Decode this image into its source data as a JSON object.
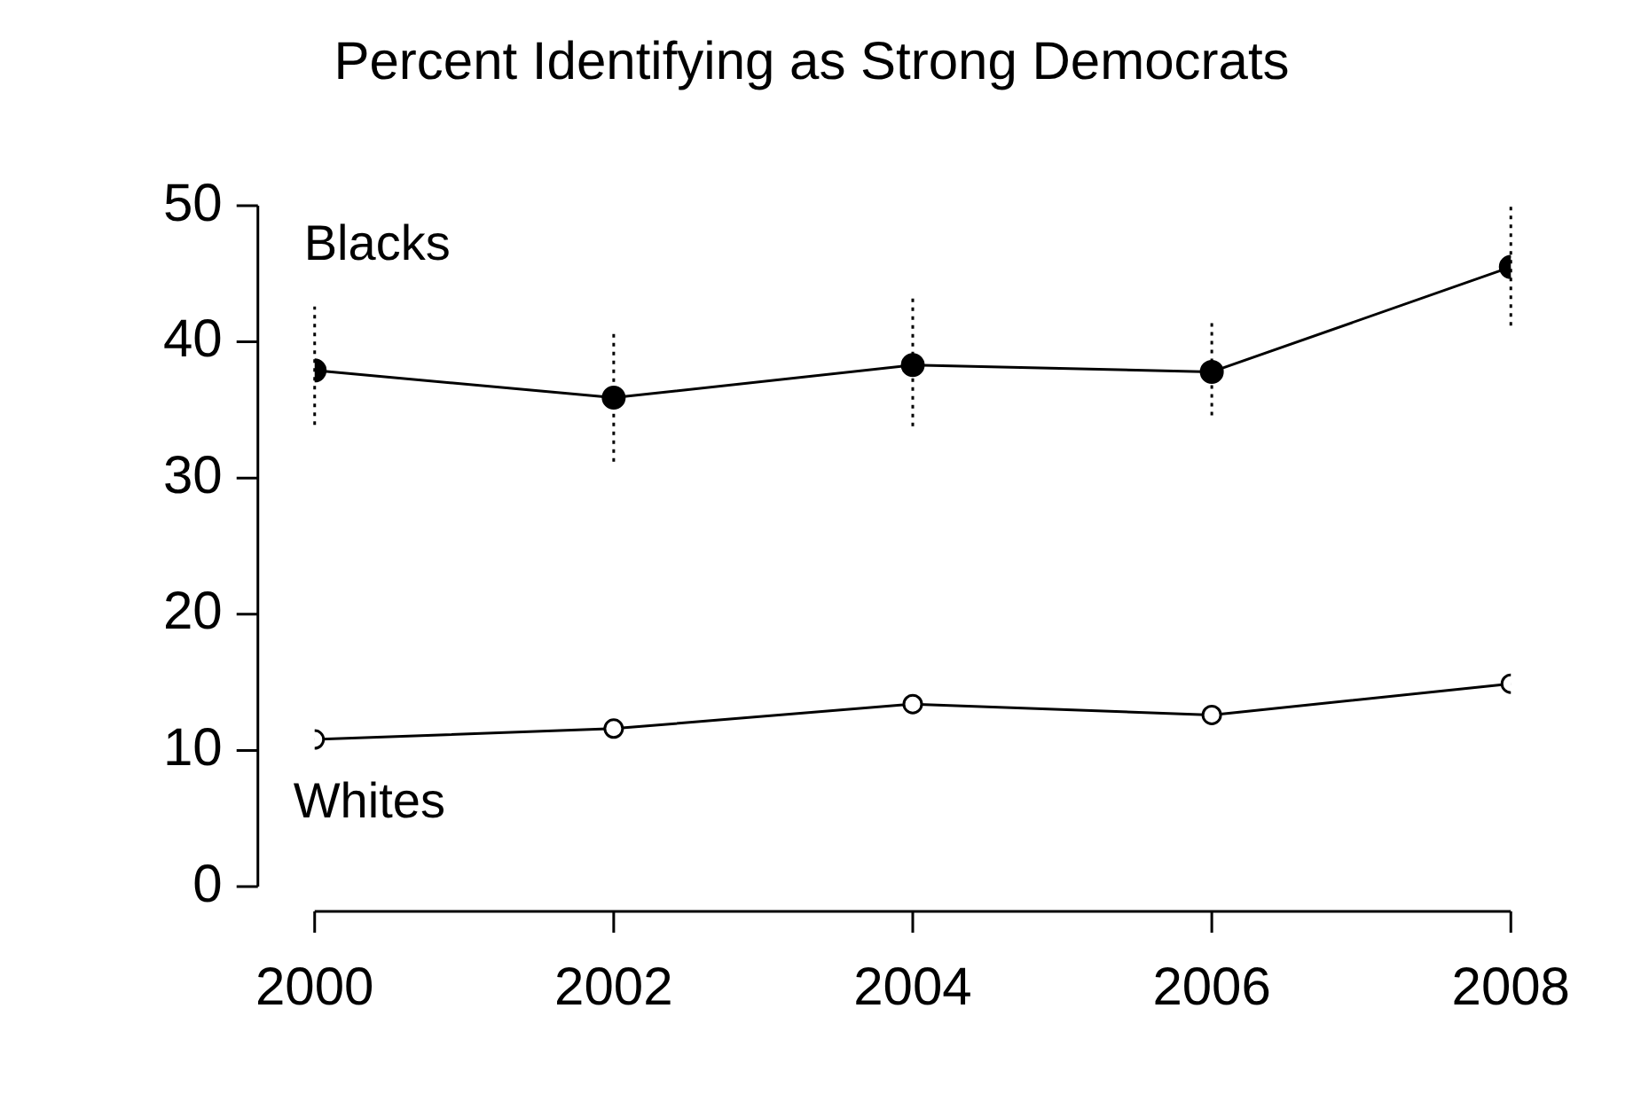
{
  "chart_data": {
    "type": "line",
    "title": "Percent Identifying as Strong Democrats",
    "x": [
      2000,
      2002,
      2004,
      2006,
      2008
    ],
    "series": [
      {
        "name": "Blacks",
        "color": "#000000",
        "values": [
          37.9,
          35.9,
          38.3,
          37.8,
          45.5
        ],
        "errors": [
          [
            33.9,
            42.6
          ],
          [
            31.2,
            40.6
          ],
          [
            33.8,
            43.3
          ],
          [
            34.6,
            41.7
          ],
          [
            41.2,
            50
          ]
        ]
      },
      {
        "name": "Whites",
        "color": "#000000",
        "values": [
          10.8,
          11.6,
          13.4,
          12.6,
          14.9
        ]
      }
    ],
    "xlim": [
      2000,
      2008
    ],
    "xticks": [
      2000,
      2002,
      2004,
      2006,
      2008
    ],
    "ylim": [
      0,
      50
    ],
    "yticks": [
      0,
      10,
      20,
      30,
      40,
      50
    ],
    "grid": false,
    "legend": false,
    "marker": "circle",
    "line_style": "solid"
  }
}
